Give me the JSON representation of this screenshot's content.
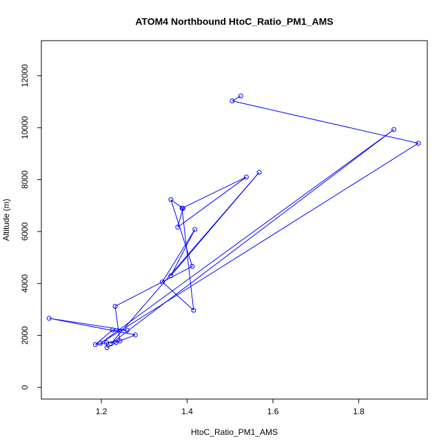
{
  "chart_data": {
    "type": "line",
    "title": "ATOM4 Northbound HtoC_Ratio_PM1_AMS",
    "xlabel": "HtoC_Ratio_PM1_AMS",
    "ylabel": "Altitude (m)",
    "xlim": [
      1.06,
      1.96
    ],
    "ylim": [
      -450,
      13350
    ],
    "x_ticks": [
      1.2,
      1.4,
      1.6,
      1.8
    ],
    "x_tick_labels": [
      "1.2",
      "1.4",
      "1.6",
      "1.8"
    ],
    "y_ticks": [
      0,
      2000,
      4000,
      6000,
      8000,
      10000,
      12000
    ],
    "y_tick_labels": [
      "0",
      "2000",
      "4000",
      "6000",
      "8000",
      "10000",
      "12000"
    ],
    "grid": false,
    "color": "#0000ff",
    "series": [
      {
        "points": [
          {
            "x": 1.525,
            "y": 11220
          },
          {
            "x": 1.505,
            "y": 11030
          },
          {
            "x": 1.939,
            "y": 9400
          },
          {
            "x": 1.198,
            "y": 1700
          },
          {
            "x": 1.882,
            "y": 9930
          },
          {
            "x": 1.222,
            "y": 1680
          },
          {
            "x": 1.568,
            "y": 8280
          },
          {
            "x": 1.362,
            "y": 4300
          },
          {
            "x": 1.418,
            "y": 6080
          },
          {
            "x": 1.342,
            "y": 4060
          },
          {
            "x": 1.415,
            "y": 2970
          },
          {
            "x": 1.388,
            "y": 6900
          },
          {
            "x": 1.538,
            "y": 8100
          },
          {
            "x": 1.378,
            "y": 6170
          },
          {
            "x": 1.39,
            "y": 6890
          },
          {
            "x": 1.362,
            "y": 7230
          },
          {
            "x": 1.412,
            "y": 4660
          },
          {
            "x": 1.232,
            "y": 3120
          },
          {
            "x": 1.243,
            "y": 1790
          },
          {
            "x": 1.186,
            "y": 1650
          },
          {
            "x": 1.226,
            "y": 2210
          },
          {
            "x": 1.26,
            "y": 2200
          },
          {
            "x": 1.078,
            "y": 2660
          },
          {
            "x": 1.279,
            "y": 2020
          },
          {
            "x": 1.234,
            "y": 1730
          },
          {
            "x": 1.213,
            "y": 1530
          },
          {
            "x": 1.212,
            "y": 1720
          }
        ]
      }
    ]
  }
}
